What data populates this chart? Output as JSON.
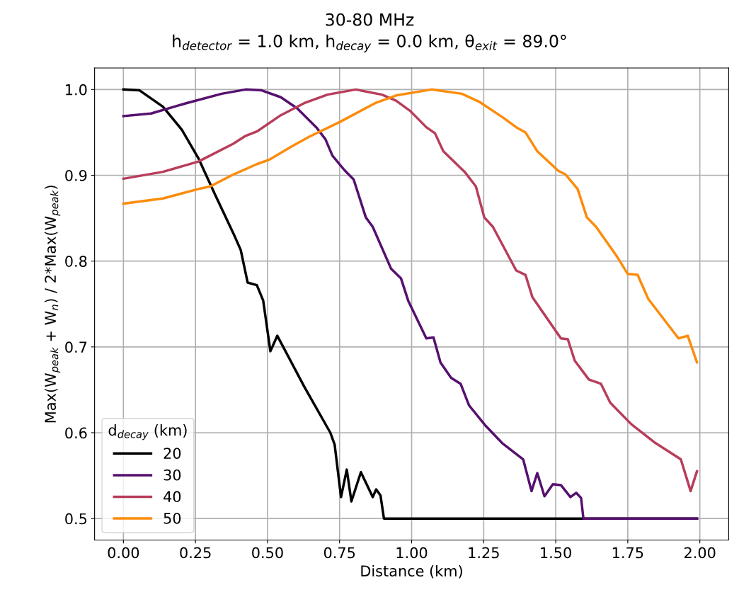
{
  "chart_data": {
    "type": "line",
    "title": "30-80 MHz",
    "subtitle": "h$_{detector}$ = 1.0 km, h$_{decay}$ = 0.0 km, θ$_{exit}$ = 89.0°",
    "xlabel": "Distance (km)",
    "ylabel": "Max(W$_{peak}$ + W$_{n}$) / 2*Max(W$_{peak}$)",
    "legend_title": "d$_{decay}$ (km)",
    "series": [
      {
        "name": "20",
        "color": "#000000",
        "x": [
          0,
          0.056,
          0.137,
          0.203,
          0.26,
          0.316,
          0.382,
          0.407,
          0.431,
          0.463,
          0.485,
          0.51,
          0.534,
          0.627,
          0.718,
          0.733,
          0.755,
          0.775,
          0.791,
          0.824,
          0.865,
          0.877,
          0.892,
          0.904,
          1.2,
          1.6,
          1.99
        ],
        "values": [
          1.0,
          0.999,
          0.98,
          0.953,
          0.92,
          0.879,
          0.832,
          0.813,
          0.775,
          0.772,
          0.754,
          0.695,
          0.713,
          0.654,
          0.6,
          0.586,
          0.525,
          0.557,
          0.52,
          0.554,
          0.525,
          0.534,
          0.527,
          0.5,
          0.5,
          0.5,
          0.5
        ]
      },
      {
        "name": "30",
        "color": "#56106e",
        "x": [
          0,
          0.096,
          0.218,
          0.341,
          0.424,
          0.48,
          0.546,
          0.603,
          0.669,
          0.701,
          0.725,
          0.767,
          0.799,
          0.841,
          0.865,
          0.929,
          0.963,
          0.988,
          1.051,
          1.076,
          1.1,
          1.137,
          1.17,
          1.199,
          1.257,
          1.314,
          1.387,
          1.416,
          1.436,
          1.461,
          1.49,
          1.518,
          1.551,
          1.571,
          1.588,
          1.596,
          1.8,
          1.99
        ],
        "values": [
          0.969,
          0.972,
          0.984,
          0.995,
          1.0,
          0.999,
          0.991,
          0.978,
          0.956,
          0.942,
          0.923,
          0.906,
          0.895,
          0.851,
          0.84,
          0.791,
          0.78,
          0.754,
          0.71,
          0.711,
          0.682,
          0.664,
          0.657,
          0.632,
          0.608,
          0.588,
          0.569,
          0.532,
          0.553,
          0.526,
          0.54,
          0.539,
          0.525,
          0.53,
          0.524,
          0.5,
          0.5,
          0.5
        ]
      },
      {
        "name": "40",
        "color": "#b83d5b",
        "x": [
          0,
          0.137,
          0.26,
          0.382,
          0.424,
          0.463,
          0.546,
          0.627,
          0.708,
          0.806,
          0.897,
          0.946,
          0.995,
          1.051,
          1.081,
          1.11,
          1.184,
          1.223,
          1.252,
          1.282,
          1.363,
          1.395,
          1.419,
          1.518,
          1.542,
          1.566,
          1.615,
          1.657,
          1.689,
          1.762,
          1.846,
          1.934,
          1.968,
          1.99
        ],
        "values": [
          0.896,
          0.904,
          0.916,
          0.937,
          0.946,
          0.951,
          0.97,
          0.984,
          0.994,
          1.0,
          0.994,
          0.987,
          0.975,
          0.956,
          0.949,
          0.928,
          0.904,
          0.887,
          0.851,
          0.84,
          0.789,
          0.784,
          0.758,
          0.71,
          0.709,
          0.684,
          0.662,
          0.657,
          0.635,
          0.61,
          0.588,
          0.569,
          0.532,
          0.555
        ]
      },
      {
        "name": "50",
        "color": "#fb8c0c",
        "x": [
          0,
          0.137,
          0.26,
          0.301,
          0.382,
          0.463,
          0.505,
          0.586,
          0.645,
          0.75,
          0.873,
          0.946,
          1.069,
          1.174,
          1.233,
          1.314,
          1.363,
          1.395,
          1.436,
          1.51,
          1.534,
          1.576,
          1.608,
          1.64,
          1.713,
          1.75,
          1.784,
          1.821,
          1.926,
          1.958,
          1.99
        ],
        "values": [
          0.867,
          0.873,
          0.884,
          0.887,
          0.901,
          0.913,
          0.918,
          0.934,
          0.945,
          0.962,
          0.984,
          0.993,
          1.0,
          0.995,
          0.986,
          0.968,
          0.956,
          0.95,
          0.928,
          0.905,
          0.901,
          0.884,
          0.851,
          0.84,
          0.805,
          0.785,
          0.784,
          0.756,
          0.71,
          0.713,
          0.682
        ]
      }
    ],
    "xlim": [
      -0.1,
      2.1
    ],
    "xticks": [
      {
        "value": 0,
        "label": "0.00"
      },
      {
        "value": 0.25,
        "label": "0.25"
      },
      {
        "value": 0.5,
        "label": "0.50"
      },
      {
        "value": 0.75,
        "label": "0.75"
      },
      {
        "value": 1,
        "label": "1.00"
      },
      {
        "value": 1.25,
        "label": "1.25"
      },
      {
        "value": 1.5,
        "label": "1.50"
      },
      {
        "value": 1.75,
        "label": "1.75"
      },
      {
        "value": 2,
        "label": "2.00"
      }
    ],
    "ylim": [
      0.475,
      1.025
    ],
    "yticks": [
      0.5,
      0.6,
      0.7,
      0.8,
      0.9,
      {
        "value": 1,
        "label": "1.0"
      }
    ],
    "grid": true,
    "legend": "bottom left",
    "marker": "none",
    "line_style": "solid"
  }
}
